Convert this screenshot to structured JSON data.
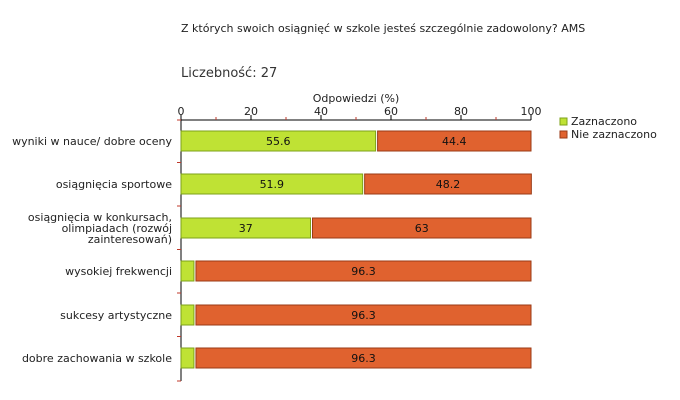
{
  "chart_data": {
    "type": "bar",
    "orientation": "horizontal",
    "stacked": true,
    "title": "Z których swoich osiągnięć w szkole jesteś szczególnie zadowolony? AMS",
    "count_label": "Liczebność:",
    "count_value": "27",
    "xlabel": "Odpowiedzi (%)",
    "xlim": [
      0,
      100
    ],
    "xticks": [
      "0",
      "20",
      "40",
      "60",
      "80",
      "100"
    ],
    "categories": [
      [
        "wyniki w nauce/ dobre oceny"
      ],
      [
        "osiągnięcia sportowe"
      ],
      [
        "osiągnięcia w konkursach,",
        "olimpiadach (rozwój",
        "zainteresowań)"
      ],
      [
        "wysokiej frekwencji"
      ],
      [
        "sukcesy artystyczne"
      ],
      [
        "dobre zachowania w szkole"
      ]
    ],
    "series": [
      {
        "name": "Zaznaczono",
        "color": "#bfe234",
        "stroke": "#7da21a",
        "values": [
          55.6,
          51.9,
          37,
          3.7,
          3.7,
          3.7
        ],
        "labels": [
          "55.6",
          "51.9",
          "37",
          "",
          "",
          ""
        ]
      },
      {
        "name": "Nie zaznaczono",
        "color": "#e0622f",
        "stroke": "#9a3a16",
        "values": [
          44.4,
          48.2,
          63,
          96.3,
          96.3,
          96.3
        ],
        "labels": [
          "44.4",
          "48.2",
          "63",
          "96.3",
          "96.3",
          "96.3"
        ]
      }
    ],
    "legend": "right"
  }
}
